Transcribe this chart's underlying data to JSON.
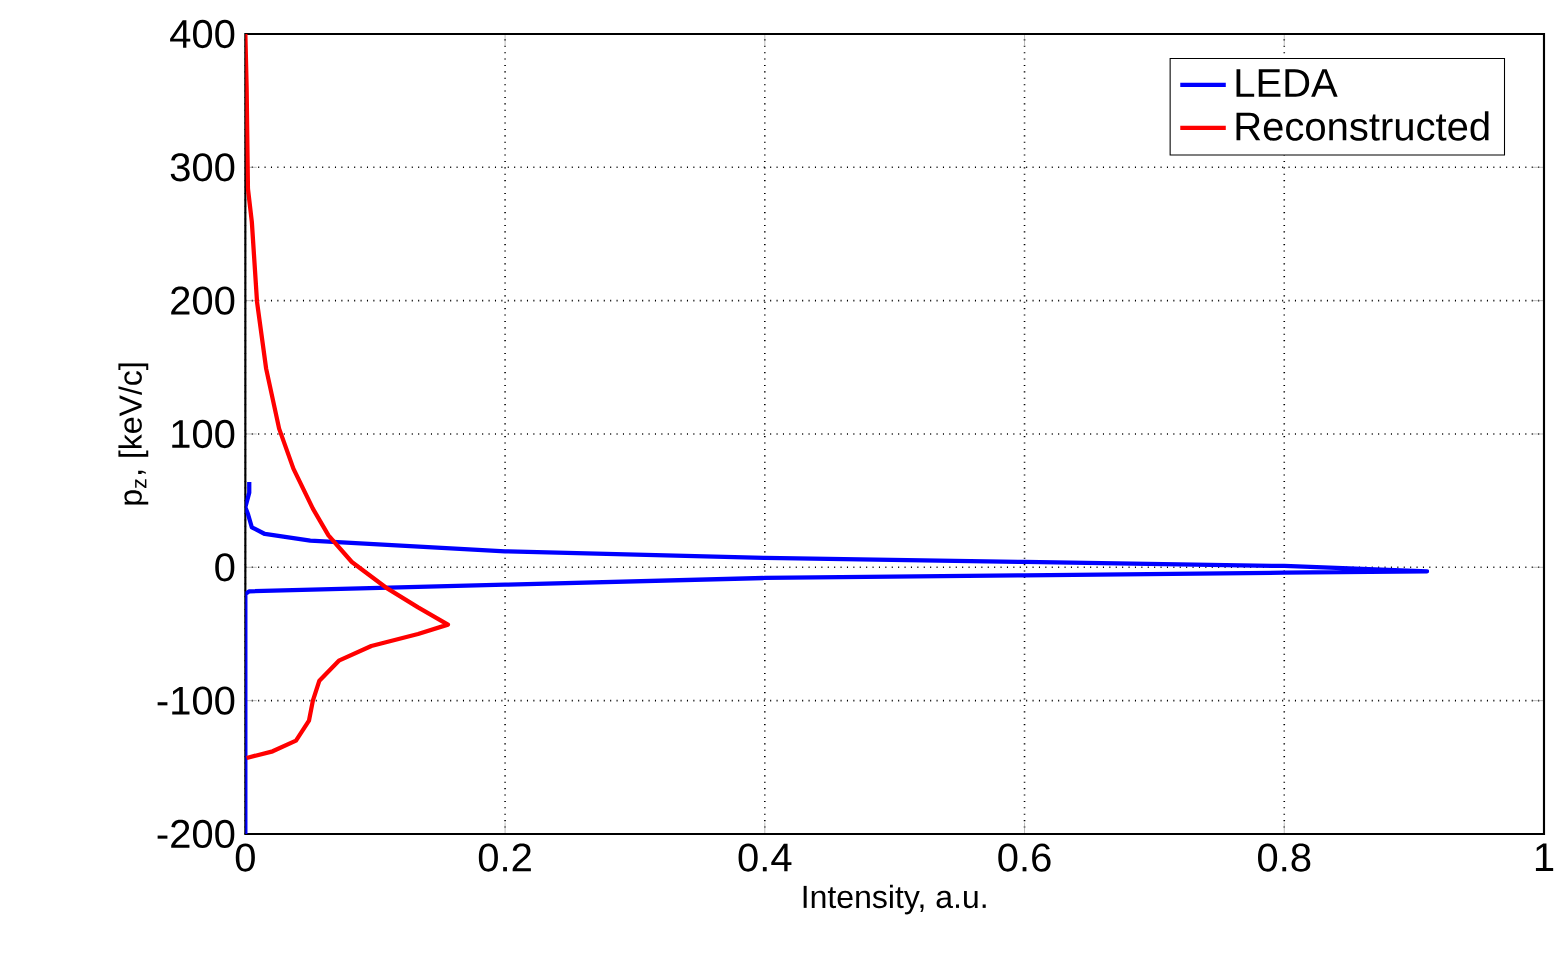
{
  "chart_data": {
    "type": "line",
    "xlabel": "Intensity, a.u.",
    "ylabel": "p$_{z}$, [keV/c]",
    "xlim": [
      0,
      1
    ],
    "ylim": [
      -200,
      400
    ],
    "xticks": [
      0,
      0.2,
      0.4,
      0.6,
      0.8,
      1
    ],
    "yticks": [
      -200,
      -100,
      0,
      100,
      200,
      300,
      400
    ],
    "grid": true,
    "legend": "top right",
    "marker": "none",
    "line_style": "solid",
    "series": [
      {
        "name": "LEDA",
        "color": "#0000ff",
        "x": [
          0,
          0,
          0.003,
          0.2,
          0.4,
          0.6,
          0.8,
          0.91,
          0.8,
          0.6,
          0.4,
          0.2,
          0.05,
          0.015,
          0.005,
          0.002,
          0,
          0.003,
          0.003
        ],
        "values": [
          -200,
          -20,
          -18,
          -13,
          -8,
          -6,
          -4,
          -3,
          1,
          4,
          7,
          12,
          20,
          25,
          30,
          40,
          45,
          56,
          64
        ]
      },
      {
        "name": "Reconstructed",
        "color": "#ff0000",
        "x": [
          0,
          0.001,
          0.002,
          0.005,
          0.009,
          0.016,
          0.026,
          0.037,
          0.052,
          0.064,
          0.082,
          0.108,
          0.133,
          0.156,
          0.133,
          0.097,
          0.072,
          0.057,
          0.052,
          0.049,
          0.039,
          0.021,
          0.001
        ],
        "values": [
          400,
          359,
          284,
          259,
          199,
          149,
          104,
          74,
          44,
          24,
          4,
          -15,
          -30,
          -43,
          -50,
          -59,
          -70,
          -85,
          -100,
          -115,
          -130,
          -138,
          -143
        ]
      }
    ]
  }
}
